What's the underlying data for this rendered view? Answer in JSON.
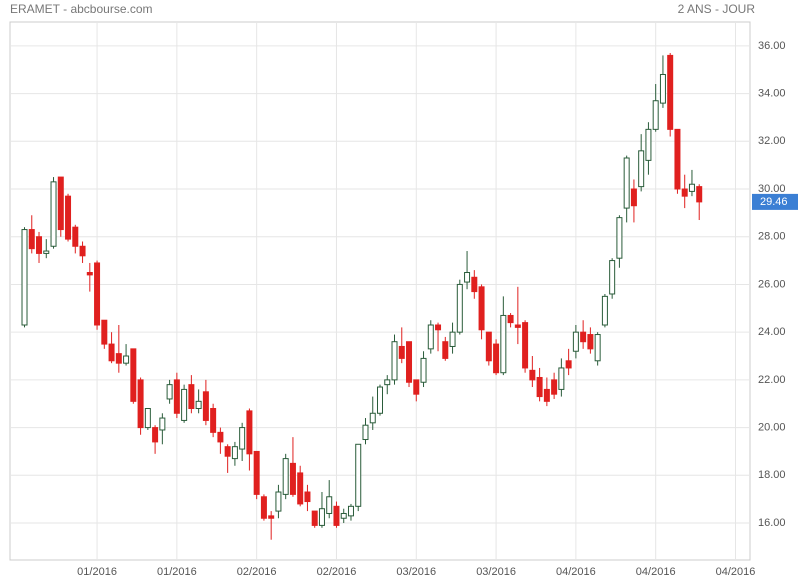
{
  "chart_data": {
    "type": "candlestick",
    "title": "ERAMET - abcbourse.com",
    "subtitle": "2 ANS - JOUR",
    "up_color": "#2a5c3a",
    "down_color": "#e0201f",
    "last_color": "#3b7fd4",
    "grid": true,
    "open": [
      24.3,
      28.3,
      28.0,
      27.3,
      27.6,
      30.5,
      29.7,
      28.4,
      27.6,
      26.5,
      26.9,
      24.5,
      23.5,
      23.1,
      22.7,
      23.3,
      22.0,
      20.0,
      20.0,
      19.9,
      21.2,
      22.0,
      20.3,
      21.8,
      20.8,
      21.5,
      20.8,
      19.8,
      19.2,
      18.7,
      19.1,
      20.7,
      19.0,
      17.1,
      16.3,
      16.5,
      17.2,
      18.5,
      18.1,
      17.3,
      16.5,
      15.9,
      16.4,
      16.7,
      16.2,
      16.3,
      16.7,
      19.5,
      20.2,
      20.6,
      21.8,
      22.0,
      23.4,
      23.6,
      22.0,
      21.9,
      23.3,
      24.3,
      23.6,
      23.4,
      24.0,
      26.1,
      26.3,
      25.9,
      24.0,
      23.5,
      22.3,
      24.7,
      24.3,
      24.4,
      22.4,
      22.1,
      21.6,
      22.0,
      21.6,
      22.8,
      23.2,
      24.0,
      23.9,
      22.8,
      24.3,
      25.6,
      27.1,
      29.2,
      30.0,
      30.1,
      31.2,
      32.5,
      33.6,
      35.6,
      32.5,
      30.0,
      29.9,
      30.1
    ],
    "high": [
      28.4,
      28.9,
      28.2,
      27.9,
      30.5,
      30.5,
      29.8,
      28.5,
      27.8,
      26.9,
      27.0,
      24.5,
      24.0,
      24.3,
      23.5,
      23.3,
      22.1,
      20.8,
      20.1,
      20.6,
      22.0,
      22.3,
      21.8,
      22.2,
      21.6,
      22.0,
      21.0,
      20.0,
      19.3,
      19.4,
      20.2,
      20.8,
      19.0,
      17.2,
      16.5,
      17.6,
      18.9,
      19.6,
      18.4,
      17.6,
      16.5,
      17.3,
      17.8,
      16.9,
      16.6,
      16.8,
      19.3,
      20.4,
      21.3,
      21.8,
      22.2,
      23.9,
      24.2,
      23.6,
      22.0,
      23.2,
      24.5,
      24.4,
      23.8,
      24.4,
      26.2,
      27.4,
      26.6,
      26.0,
      24.0,
      23.7,
      25.5,
      24.8,
      25.9,
      24.5,
      23.0,
      22.5,
      22.1,
      22.3,
      22.9,
      23.3,
      24.3,
      24.5,
      24.2,
      24.0,
      25.6,
      27.1,
      28.9,
      31.4,
      30.4,
      32.3,
      32.8,
      34.4,
      35.6,
      35.7,
      32.5,
      30.6,
      30.8,
      30.2
    ],
    "low": [
      24.2,
      27.3,
      26.9,
      27.1,
      27.5,
      28.0,
      27.8,
      27.3,
      26.9,
      25.7,
      24.1,
      23.3,
      22.7,
      22.3,
      22.6,
      21.0,
      19.7,
      19.9,
      18.9,
      19.3,
      21.0,
      20.4,
      20.2,
      20.6,
      20.6,
      20.1,
      19.6,
      18.9,
      18.1,
      18.4,
      18.6,
      18.2,
      17.0,
      16.1,
      15.3,
      16.2,
      17.0,
      17.1,
      16.7,
      16.5,
      15.8,
      15.8,
      16.2,
      15.8,
      16.0,
      16.1,
      16.5,
      19.3,
      19.9,
      20.5,
      21.4,
      21.8,
      22.7,
      21.7,
      21.1,
      21.7,
      23.1,
      23.2,
      22.8,
      23.1,
      23.9,
      25.8,
      25.4,
      23.7,
      22.6,
      22.2,
      22.2,
      24.2,
      23.5,
      22.3,
      21.7,
      21.1,
      20.9,
      21.2,
      21.3,
      22.2,
      22.9,
      23.3,
      23.1,
      22.6,
      24.2,
      25.4,
      26.7,
      28.6,
      28.6,
      29.9,
      30.6,
      32.4,
      33.4,
      32.2,
      29.8,
      29.2,
      29.7,
      28.7
    ],
    "close": [
      28.3,
      27.5,
      27.3,
      27.4,
      30.3,
      28.3,
      27.9,
      27.6,
      27.2,
      26.4,
      24.3,
      23.5,
      22.8,
      22.7,
      23.0,
      21.1,
      20.0,
      20.8,
      19.4,
      20.4,
      21.8,
      20.6,
      21.6,
      20.8,
      21.1,
      20.3,
      19.8,
      19.4,
      18.8,
      19.2,
      20.0,
      18.9,
      17.2,
      16.2,
      16.2,
      17.3,
      18.7,
      17.2,
      16.8,
      16.9,
      15.9,
      16.6,
      17.1,
      15.9,
      16.4,
      16.7,
      19.3,
      20.1,
      20.6,
      21.7,
      22.0,
      23.6,
      22.9,
      21.9,
      21.4,
      22.9,
      24.3,
      24.1,
      22.9,
      24.0,
      26.0,
      26.5,
      25.7,
      24.1,
      22.8,
      22.3,
      24.7,
      24.4,
      24.2,
      22.5,
      22.0,
      21.3,
      21.1,
      21.4,
      22.5,
      22.5,
      24.0,
      23.6,
      23.3,
      23.9,
      25.5,
      27.0,
      28.8,
      31.3,
      29.3,
      31.6,
      32.5,
      33.7,
      34.8,
      32.5,
      30.0,
      29.7,
      30.2,
      29.46
    ],
    "xlim": [
      -2,
      100
    ],
    "xticks": [
      {
        "value": 10,
        "label": "01/2016"
      },
      {
        "value": 21,
        "label": "01/2016"
      },
      {
        "value": 32,
        "label": "02/2016"
      },
      {
        "value": 43,
        "label": "02/2016"
      },
      {
        "value": 54,
        "label": "03/2016"
      },
      {
        "value": 65,
        "label": "03/2016"
      },
      {
        "value": 76,
        "label": "04/2016"
      },
      {
        "value": 87,
        "label": "04/2016"
      },
      {
        "value": 98,
        "label": "04/2016"
      }
    ],
    "ylim": [
      14.45,
      37.0
    ],
    "yticks": [
      {
        "value": 16,
        "label": "16.00"
      },
      {
        "value": 18,
        "label": "18.00"
      },
      {
        "value": 20,
        "label": "20.00"
      },
      {
        "value": 22,
        "label": "22.00"
      },
      {
        "value": 24,
        "label": "24.00"
      },
      {
        "value": 26,
        "label": "26.00"
      },
      {
        "value": 28,
        "label": "28.00"
      },
      {
        "value": 30,
        "label": "30.00"
      },
      {
        "value": 32,
        "label": "32.00"
      },
      {
        "value": 34,
        "label": "34.00"
      },
      {
        "value": 36,
        "label": "36.00"
      }
    ]
  }
}
